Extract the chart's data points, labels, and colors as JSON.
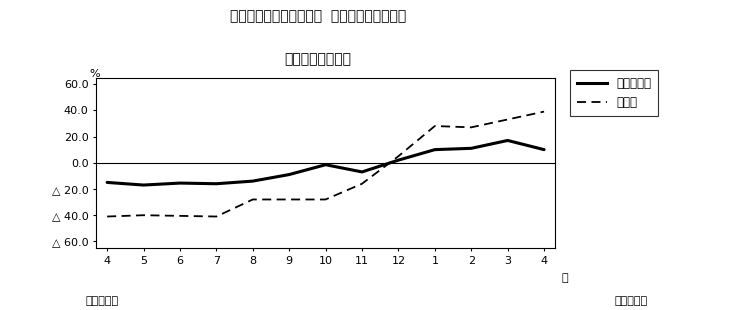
{
  "title_line1": "第２図　所定外労働時間  対前年同月比の推移",
  "title_line2": "（規模５人以上）",
  "xlabel_right": "月",
  "ylabel": "%",
  "x_labels": [
    "4",
    "5",
    "6",
    "7",
    "8",
    "9",
    "10",
    "11",
    "12",
    "1",
    "2",
    "3",
    "4"
  ],
  "x_bottom_left": "平成２１年",
  "x_bottom_right": "平成２２年",
  "survey_total": [
    -15.0,
    -17.0,
    -15.5,
    -16.0,
    -14.0,
    -9.0,
    -1.5,
    -7.0,
    2.0,
    10.0,
    11.0,
    17.0,
    10.0
  ],
  "manufacturing": [
    -41.0,
    -40.0,
    -40.5,
    -41.0,
    -28.0,
    -28.0,
    -28.0,
    -16.0,
    5.0,
    28.0,
    27.0,
    33.0,
    39.0
  ],
  "ylim": [
    -65,
    65
  ],
  "yticks": [
    60.0,
    40.0,
    20.0,
    0.0,
    -20.0,
    -40.0,
    -60.0
  ],
  "legend_labels": [
    "調査産業計",
    "製造業"
  ],
  "bg_color": "#ffffff",
  "line_color": "#000000",
  "title_fontsize": 10,
  "tick_fontsize": 8,
  "legend_fontsize": 8.5
}
